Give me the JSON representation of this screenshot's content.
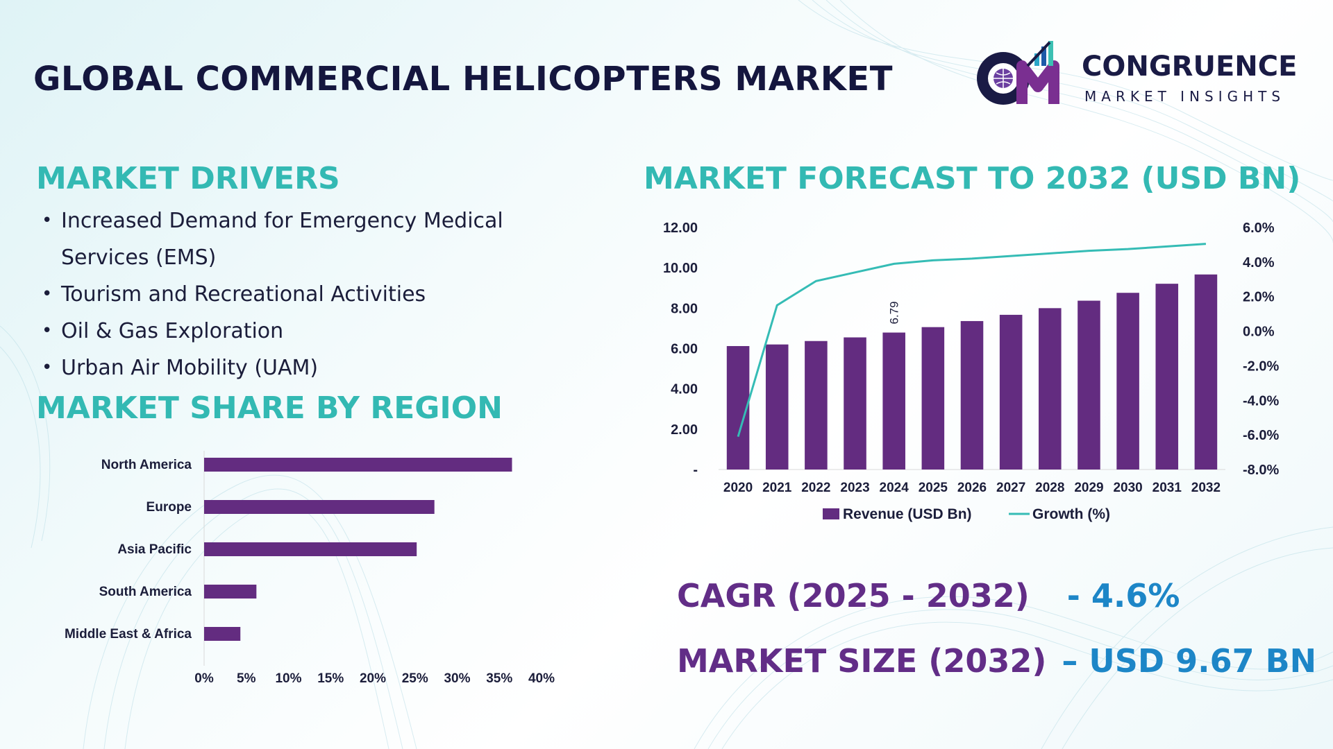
{
  "title": "GLOBAL COMMERCIAL HELICOPTERS MARKET",
  "logo": {
    "initials": "CM",
    "name": "CONGRUENCE",
    "tagline": "MARKET INSIGHTS"
  },
  "colors": {
    "heading_teal": "#33b9b3",
    "bar_purple": "#632c80",
    "growth_line": "#35bcb5",
    "accent_blue": "#1d86c7",
    "title_navy": "#14163e"
  },
  "drivers": {
    "heading": "MARKET DRIVERS",
    "items": [
      "Increased Demand for Emergency Medical Services (EMS)",
      "Tourism and Recreational Activities",
      "Oil & Gas Exploration",
      "Urban Air Mobility (UAM)"
    ]
  },
  "region_heading": "MARKET SHARE BY REGION",
  "forecast_heading": "MARKET FORECAST TO 2032 (USD BN)",
  "stats": {
    "cagr_label": "CAGR (2025 - 2032)",
    "cagr_value": "- 4.6%",
    "size_label": "MARKET SIZE (2032)",
    "size_value": "– USD 9.67 BN"
  },
  "chart_data": [
    {
      "type": "bar",
      "orientation": "horizontal",
      "categories": [
        "North America",
        "Europe",
        "Asia Pacific",
        "South America",
        "Middle East & Africa"
      ],
      "values": [
        36.5,
        27.3,
        25.2,
        6.2,
        4.3
      ],
      "x_ticks": [
        "0%",
        "5%",
        "10%",
        "15%",
        "20%",
        "25%",
        "30%",
        "35%",
        "40%"
      ],
      "xlim": [
        0,
        40
      ],
      "grid": false
    },
    {
      "type": "bar",
      "categories": [
        "2020",
        "2021",
        "2022",
        "2023",
        "2024",
        "2025",
        "2026",
        "2027",
        "2028",
        "2029",
        "2030",
        "2031",
        "2032"
      ],
      "series": [
        {
          "name": "Revenue (USD Bn)",
          "type": "bar",
          "axis": "left",
          "values": [
            6.12,
            6.2,
            6.37,
            6.55,
            6.79,
            7.06,
            7.36,
            7.67,
            8.0,
            8.37,
            8.76,
            9.21,
            9.67
          ]
        },
        {
          "name": "Growth (%)",
          "type": "line",
          "axis": "right",
          "values": [
            -6.1,
            1.5,
            2.9,
            3.4,
            3.9,
            4.1,
            4.2,
            4.35,
            4.5,
            4.65,
            4.75,
            4.9,
            5.05
          ]
        }
      ],
      "data_labels": [
        {
          "category": "2024",
          "text": "6.79"
        }
      ],
      "ylim_left": [
        0,
        12
      ],
      "ylim_right": [
        -8,
        6
      ],
      "y_ticks_left": [
        "-",
        "2.00",
        "4.00",
        "6.00",
        "8.00",
        "10.00",
        "12.00"
      ],
      "y_ticks_right": [
        "-8.0%",
        "-6.0%",
        "-4.0%",
        "-2.0%",
        "0.0%",
        "2.0%",
        "4.0%",
        "6.0%"
      ],
      "legend": "bottom",
      "grid": false
    }
  ]
}
